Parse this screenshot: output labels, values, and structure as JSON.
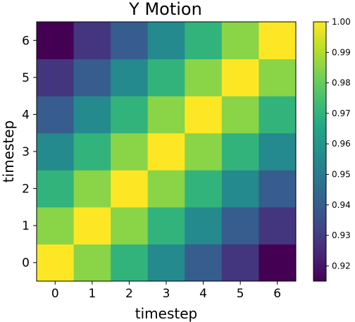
{
  "chart_data": {
    "type": "heatmap",
    "title": "Y Motion",
    "xlabel": "timestep",
    "ylabel": "timestep",
    "x": [
      0,
      1,
      2,
      3,
      4,
      5,
      6
    ],
    "y": [
      0,
      1,
      2,
      3,
      4,
      5,
      6
    ],
    "values_by_lag": [
      1.0,
      0.985,
      0.97,
      0.955,
      0.94,
      0.928,
      0.915
    ],
    "colorbar": {
      "min": 0.915,
      "max": 1.0,
      "ticks": [
        "0.92",
        "0.93",
        "0.94",
        "0.95",
        "0.96",
        "0.97",
        "0.98",
        "0.99",
        "1.00"
      ],
      "colormap": "viridis"
    },
    "grid": false
  }
}
